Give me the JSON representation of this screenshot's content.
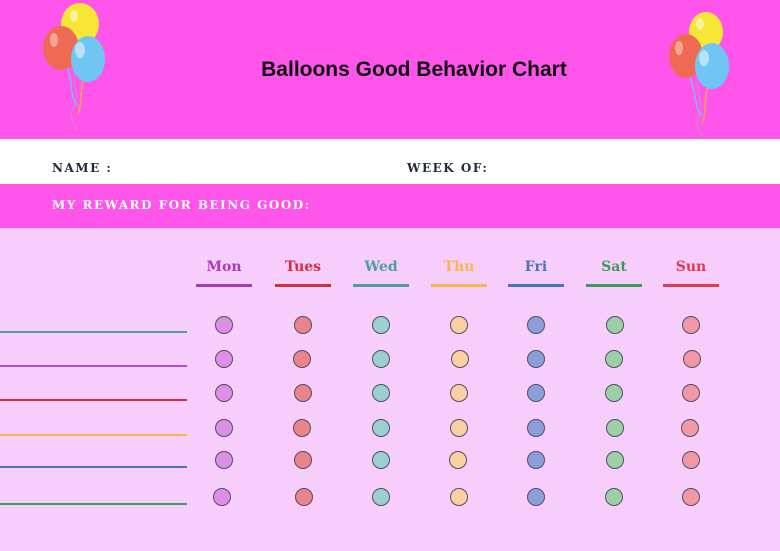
{
  "title": "Balloons Good Behavior Chart",
  "fields": {
    "name_label": "NAME :",
    "week_label": "WEEK OF:",
    "reward_label": "MY REWARD FOR BEING GOOD:"
  },
  "days": [
    {
      "label": "Mon",
      "color": "#a93bb8",
      "dot": "#df8ee8"
    },
    {
      "label": "Tues",
      "color": "#d2303a",
      "dot": "#e9838c"
    },
    {
      "label": "Wed",
      "color": "#4d9da1",
      "dot": "#9ccfd0"
    },
    {
      "label": "Thu",
      "color": "#f6b84a",
      "dot": "#f9cfa3"
    },
    {
      "label": "Fri",
      "color": "#4474ba",
      "dot": "#8c9ed8"
    },
    {
      "label": "Sat",
      "color": "#3e9a57",
      "dot": "#9ccfa6"
    },
    {
      "label": "Sun",
      "color": "#e03a4f",
      "dot": "#f197a6"
    }
  ],
  "rows": [
    {
      "line_color": "#4d9da1"
    },
    {
      "line_color": "#b94bc8"
    },
    {
      "line_color": "#d2303a"
    },
    {
      "line_color": "#f6b84a"
    },
    {
      "line_color": "#4474ba"
    },
    {
      "line_color": "#3e9a57"
    }
  ],
  "icons": {
    "left": "balloons-icon",
    "right": "balloons-icon"
  }
}
